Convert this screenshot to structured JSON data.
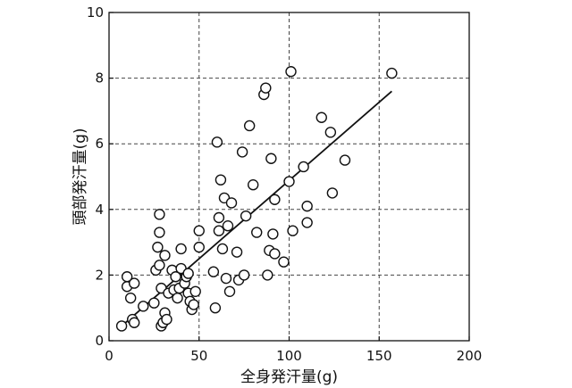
{
  "chart_data": {
    "type": "scatter",
    "xlabel": "全身発汗量(g)",
    "ylabel": "頭部発汗量(g)",
    "xlim": [
      0,
      200
    ],
    "ylim": [
      0,
      10
    ],
    "x_ticks": [
      "0",
      "50",
      "100",
      "150",
      "200"
    ],
    "y_ticks": [
      "0",
      "2",
      "4",
      "6",
      "8",
      "10"
    ],
    "grid": true,
    "grid_style": "dashed",
    "marker": "open-circle",
    "points": [
      {
        "x": 7,
        "y": 0.45
      },
      {
        "x": 10,
        "y": 1.65
      },
      {
        "x": 10,
        "y": 1.95
      },
      {
        "x": 12,
        "y": 1.3
      },
      {
        "x": 13,
        "y": 0.65
      },
      {
        "x": 14,
        "y": 0.55
      },
      {
        "x": 14,
        "y": 1.75
      },
      {
        "x": 19,
        "y": 1.05
      },
      {
        "x": 25,
        "y": 1.15
      },
      {
        "x": 26,
        "y": 2.15
      },
      {
        "x": 27,
        "y": 2.85
      },
      {
        "x": 28,
        "y": 3.3
      },
      {
        "x": 28,
        "y": 3.85
      },
      {
        "x": 28,
        "y": 2.3
      },
      {
        "x": 29,
        "y": 1.6
      },
      {
        "x": 29,
        "y": 0.45
      },
      {
        "x": 30,
        "y": 0.55
      },
      {
        "x": 31,
        "y": 2.6
      },
      {
        "x": 31,
        "y": 0.85
      },
      {
        "x": 32,
        "y": 0.65
      },
      {
        "x": 33,
        "y": 1.45
      },
      {
        "x": 35,
        "y": 2.15
      },
      {
        "x": 36,
        "y": 1.55
      },
      {
        "x": 37,
        "y": 1.95
      },
      {
        "x": 38,
        "y": 1.3
      },
      {
        "x": 39,
        "y": 1.6
      },
      {
        "x": 40,
        "y": 2.8
      },
      {
        "x": 40,
        "y": 2.2
      },
      {
        "x": 42,
        "y": 1.75
      },
      {
        "x": 43,
        "y": 1.95
      },
      {
        "x": 44,
        "y": 2.05
      },
      {
        "x": 44,
        "y": 1.45
      },
      {
        "x": 45,
        "y": 1.2
      },
      {
        "x": 46,
        "y": 0.95
      },
      {
        "x": 47,
        "y": 1.1
      },
      {
        "x": 48,
        "y": 1.5
      },
      {
        "x": 50,
        "y": 2.85
      },
      {
        "x": 50,
        "y": 3.35
      },
      {
        "x": 58,
        "y": 2.1
      },
      {
        "x": 59,
        "y": 1.0
      },
      {
        "x": 60,
        "y": 6.05
      },
      {
        "x": 61,
        "y": 3.75
      },
      {
        "x": 61,
        "y": 3.35
      },
      {
        "x": 62,
        "y": 4.9
      },
      {
        "x": 63,
        "y": 2.8
      },
      {
        "x": 64,
        "y": 4.35
      },
      {
        "x": 65,
        "y": 1.9
      },
      {
        "x": 66,
        "y": 3.5
      },
      {
        "x": 67,
        "y": 1.5
      },
      {
        "x": 68,
        "y": 4.2
      },
      {
        "x": 71,
        "y": 2.7
      },
      {
        "x": 72,
        "y": 1.85
      },
      {
        "x": 74,
        "y": 5.75
      },
      {
        "x": 75,
        "y": 2.0
      },
      {
        "x": 76,
        "y": 3.8
      },
      {
        "x": 78,
        "y": 6.55
      },
      {
        "x": 80,
        "y": 4.75
      },
      {
        "x": 82,
        "y": 3.3
      },
      {
        "x": 86,
        "y": 7.5
      },
      {
        "x": 87,
        "y": 7.7
      },
      {
        "x": 88,
        "y": 2.0
      },
      {
        "x": 89,
        "y": 2.75
      },
      {
        "x": 90,
        "y": 5.55
      },
      {
        "x": 91,
        "y": 3.25
      },
      {
        "x": 92,
        "y": 4.3
      },
      {
        "x": 92,
        "y": 2.65
      },
      {
        "x": 97,
        "y": 2.4
      },
      {
        "x": 100,
        "y": 4.85
      },
      {
        "x": 101,
        "y": 8.2
      },
      {
        "x": 102,
        "y": 3.35
      },
      {
        "x": 108,
        "y": 5.3
      },
      {
        "x": 110,
        "y": 4.1
      },
      {
        "x": 110,
        "y": 3.6
      },
      {
        "x": 118,
        "y": 6.8
      },
      {
        "x": 123,
        "y": 6.35
      },
      {
        "x": 124,
        "y": 4.5
      },
      {
        "x": 131,
        "y": 5.5
      },
      {
        "x": 157,
        "y": 8.15
      }
    ],
    "fit_line": {
      "x": [
        6,
        157
      ],
      "y": [
        0.4,
        7.6
      ]
    }
  }
}
